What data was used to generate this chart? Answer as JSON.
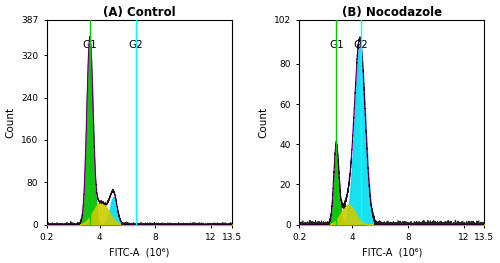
{
  "title_A": "(A) Control",
  "title_B": "(B) Nocodazole",
  "xlabel": "FITC-A  (10⁶)",
  "ylabel": "Count",
  "xlim": [
    0.2,
    13.5
  ],
  "xticks": [
    0.2,
    4,
    8,
    12,
    13.5
  ],
  "xtick_labels": [
    "0.2",
    "4",
    "8",
    "12",
    "13.5"
  ],
  "ylim_A": [
    0,
    387
  ],
  "yticks_A": [
    0,
    80,
    160,
    240,
    320,
    387
  ],
  "ytick_labels_A": [
    "0",
    "80",
    "160",
    "240",
    "320",
    "387"
  ],
  "ylim_B": [
    0,
    102
  ],
  "yticks_B": [
    0,
    20,
    40,
    60,
    80,
    102
  ],
  "ytick_labels_B": [
    "0",
    "20",
    "40",
    "60",
    "80",
    "102"
  ],
  "G1_line_A": 3.3,
  "G2_line_A": 6.6,
  "G1_line_B": 2.85,
  "G2_line_B": 4.6,
  "colors": {
    "green": "#00BB00",
    "cyan": "#00DDEE",
    "yellow": "#CCCC00",
    "magenta": "#FF00FF",
    "black": "#000000",
    "cyan_line": "#00FFFF",
    "green_line": "#00CC00"
  },
  "panel_A": {
    "g1_mu": 3.3,
    "g1_sigma": 0.22,
    "g1_amp": 340,
    "g2_mu": 5.0,
    "g2_sigma": 0.25,
    "g2_amp": 52,
    "s_mu": 4.1,
    "s_sigma": 0.55,
    "s_amp": 42,
    "noise_amp": 1.5,
    "base_amp": 2.0
  },
  "panel_B": {
    "g1_mu": 2.85,
    "g1_sigma": 0.18,
    "g1_amp": 38,
    "g2_mu": 4.55,
    "g2_sigma": 0.38,
    "g2_amp": 90,
    "s_mu": 3.7,
    "s_sigma": 0.5,
    "s_amp": 10,
    "noise_amp": 0.8,
    "base_amp": 1.5
  }
}
